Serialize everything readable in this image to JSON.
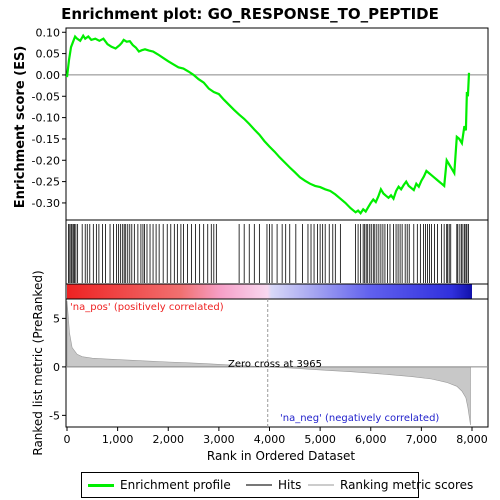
{
  "chart_data": {
    "type": "line",
    "title": "Enrichment plot: GO_RESPONSE_TO_PEPTIDE",
    "ylabel_top": "Enrichment score (ES)",
    "ylabel_bottom": "Ranked list metric (PreRanked)",
    "xlabel": "Rank in Ordered Dataset",
    "xlim": [
      0,
      8000
    ],
    "xticks": [
      0,
      1000,
      2000,
      3000,
      4000,
      5000,
      6000,
      7000,
      8000
    ],
    "xtick_labels": [
      "0",
      "1,000",
      "2,000",
      "3,000",
      "4,000",
      "5,000",
      "6,000",
      "7,000",
      "8,000"
    ],
    "es_ylim": [
      -0.34,
      0.11
    ],
    "es_yticks": [
      0.1,
      0.05,
      0.0,
      -0.05,
      -0.1,
      -0.15,
      -0.2,
      -0.25,
      -0.3
    ],
    "es_ytick_labels": [
      "0.10",
      "0.05",
      "0.00",
      "-0.05",
      "-0.10",
      "-0.15",
      "-0.20",
      "-0.25",
      "-0.30"
    ],
    "metric_ylim": [
      -6.2,
      7.0
    ],
    "metric_yticks": [
      5,
      0,
      -5
    ],
    "metric_ytick_labels": [
      "5",
      "0",
      "-5"
    ],
    "zero_cross_rank": 3965,
    "zero_cross_label": "Zero cross at 3965",
    "pos_label": "'na_pos' (positively correlated)",
    "neg_label": "'na_neg' (negatively correlated)",
    "enrichment_profile": {
      "name": "Enrichment profile",
      "color": "#00ee00",
      "x": [
        0,
        40,
        80,
        120,
        160,
        200,
        260,
        320,
        360,
        420,
        480,
        560,
        640,
        720,
        800,
        880,
        960,
        1040,
        1080,
        1120,
        1180,
        1240,
        1300,
        1360,
        1420,
        1480,
        1540,
        1620,
        1700,
        1800,
        1900,
        2000,
        2100,
        2200,
        2300,
        2400,
        2500,
        2600,
        2700,
        2800,
        2900,
        3000,
        3100,
        3200,
        3300,
        3400,
        3500,
        3600,
        3700,
        3800,
        3900,
        4000,
        4100,
        4200,
        4300,
        4400,
        4500,
        4600,
        4700,
        4800,
        4900,
        5000,
        5100,
        5200,
        5300,
        5400,
        5500,
        5600,
        5700,
        5750,
        5800,
        5850,
        5900,
        5950,
        6000,
        6050,
        6100,
        6150,
        6200,
        6250,
        6300,
        6350,
        6400,
        6450,
        6500,
        6550,
        6600,
        6650,
        6700,
        6750,
        6800,
        6850,
        6900,
        6950,
        7000,
        7050,
        7100,
        7150,
        7200,
        7250,
        7300,
        7350,
        7400,
        7450,
        7500,
        7550,
        7600,
        7650,
        7700,
        7750,
        7800,
        7850,
        7880,
        7900,
        7920,
        7940
      ],
      "y": [
        -0.005,
        0.035,
        0.065,
        0.078,
        0.09,
        0.085,
        0.08,
        0.092,
        0.085,
        0.09,
        0.082,
        0.085,
        0.08,
        0.085,
        0.072,
        0.066,
        0.062,
        0.07,
        0.075,
        0.082,
        0.078,
        0.079,
        0.07,
        0.064,
        0.055,
        0.058,
        0.06,
        0.057,
        0.055,
        0.048,
        0.04,
        0.032,
        0.025,
        0.018,
        0.015,
        0.008,
        0.0,
        -0.01,
        -0.018,
        -0.032,
        -0.04,
        -0.045,
        -0.058,
        -0.07,
        -0.082,
        -0.093,
        -0.103,
        -0.115,
        -0.128,
        -0.14,
        -0.155,
        -0.168,
        -0.18,
        -0.193,
        -0.205,
        -0.217,
        -0.228,
        -0.24,
        -0.248,
        -0.255,
        -0.26,
        -0.263,
        -0.268,
        -0.272,
        -0.28,
        -0.29,
        -0.3,
        -0.312,
        -0.322,
        -0.318,
        -0.324,
        -0.315,
        -0.32,
        -0.31,
        -0.3,
        -0.292,
        -0.298,
        -0.285,
        -0.268,
        -0.278,
        -0.283,
        -0.288,
        -0.282,
        -0.29,
        -0.272,
        -0.262,
        -0.268,
        -0.258,
        -0.25,
        -0.26,
        -0.265,
        -0.27,
        -0.255,
        -0.262,
        -0.248,
        -0.238,
        -0.225,
        -0.23,
        -0.235,
        -0.24,
        -0.245,
        -0.25,
        -0.255,
        -0.26,
        -0.2,
        -0.21,
        -0.22,
        -0.23,
        -0.145,
        -0.15,
        -0.16,
        -0.12,
        -0.13,
        -0.04,
        -0.05,
        0.005
      ]
    },
    "hits": {
      "name": "Hits",
      "x": [
        30,
        55,
        80,
        100,
        125,
        150,
        175,
        210,
        300,
        360,
        400,
        450,
        520,
        580,
        630,
        700,
        760,
        850,
        920,
        980,
        1020,
        1060,
        1100,
        1130,
        1160,
        1200,
        1240,
        1280,
        1330,
        1400,
        1460,
        1500,
        1530,
        1580,
        1640,
        1700,
        1760,
        1820,
        1900,
        1980,
        2050,
        2120,
        2180,
        2250,
        2300,
        2380,
        2460,
        2540,
        2620,
        2700,
        2780,
        2850,
        2900,
        2950,
        3400,
        3500,
        3600,
        3700,
        3800,
        3950,
        4000,
        4050,
        4150,
        4250,
        4320,
        4400,
        4520,
        4650,
        4760,
        4820,
        4880,
        4950,
        5000,
        5050,
        5100,
        5180,
        5250,
        5300,
        5400,
        5700,
        5750,
        5800,
        5850,
        5880,
        5910,
        5940,
        5980,
        6010,
        6050,
        6080,
        6120,
        6160,
        6200,
        6240,
        6280,
        6330,
        6380,
        6450,
        6500,
        6540,
        6580,
        6620,
        6680,
        6720,
        6760,
        6850,
        6920,
        6980,
        7040,
        7080,
        7120,
        7160,
        7200,
        7260,
        7320,
        7400,
        7450,
        7500,
        7520,
        7550,
        7580,
        7700,
        7720,
        7760,
        7790,
        7820,
        7850,
        7880,
        7900,
        7930
      ]
    },
    "ranking_metric": {
      "name": "Ranking metric scores",
      "x": [
        0,
        20,
        50,
        100,
        200,
        300,
        500,
        800,
        1200,
        1600,
        2000,
        2400,
        2800,
        3200,
        3600,
        3965,
        4400,
        4800,
        5200,
        5600,
        6000,
        6400,
        6800,
        7200,
        7500,
        7700,
        7800,
        7880,
        7920,
        7950,
        7970
      ],
      "y": [
        6.8,
        5.5,
        3.5,
        2.0,
        1.3,
        1.05,
        0.9,
        0.8,
        0.7,
        0.6,
        0.5,
        0.42,
        0.32,
        0.2,
        0.08,
        0.0,
        -0.12,
        -0.25,
        -0.38,
        -0.5,
        -0.65,
        -0.82,
        -1.0,
        -1.25,
        -1.6,
        -2.0,
        -2.5,
        -3.2,
        -4.2,
        -5.3,
        -6.0
      ]
    }
  },
  "legend": {
    "profile_label": "Enrichment profile",
    "hits_label": "Hits",
    "metric_label": "Ranking metric scores"
  }
}
